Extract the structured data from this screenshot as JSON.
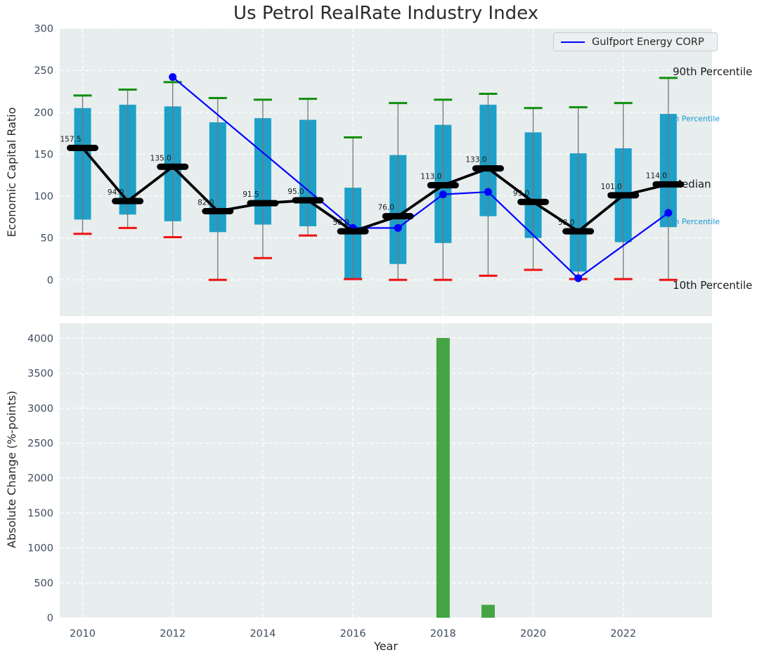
{
  "title": "Us Petrol RealRate Industry Index",
  "colors": {
    "panel_bg": "#e8edee",
    "grid": "#ffffff",
    "box_fill": "#1ea0c8",
    "whisker": "#777777",
    "p90_cap": "#0f8f0f",
    "p10_cap": "#ee1111",
    "median": "#000000",
    "gulfport_line": "#0000ff",
    "bar_fill": "#45a445",
    "tick_label": "#3e4c5e",
    "annotation_cyan": "#1699cd",
    "text_dark": "#1a1a1a"
  },
  "chart_data": [
    {
      "type": "boxplot",
      "title": "Us Petrol RealRate Industry Index",
      "ylabel": "Economic Capital Ratio",
      "ylim": [
        -43,
        300
      ],
      "yticks": [
        0,
        50,
        100,
        150,
        200,
        250,
        300
      ],
      "grid": true,
      "categories": [
        2010,
        2011,
        2012,
        2013,
        2014,
        2015,
        2016,
        2017,
        2018,
        2019,
        2020,
        2021,
        2022,
        2023
      ],
      "boxes": {
        "p90": [
          220,
          227,
          236,
          217,
          215,
          216,
          170,
          211,
          215,
          222,
          205,
          206,
          211,
          241
        ],
        "q3": [
          205,
          209,
          207,
          188,
          193,
          191,
          110,
          149,
          185,
          209,
          176,
          151,
          157,
          198
        ],
        "median": [
          157.5,
          94,
          135,
          82,
          91.5,
          95,
          58,
          76,
          113,
          133,
          93,
          58,
          101,
          114
        ],
        "q1": [
          72,
          78,
          70,
          57,
          66,
          64,
          1,
          19,
          44,
          76,
          50,
          10,
          45,
          63
        ],
        "p10": [
          55,
          62,
          51,
          0,
          26,
          53,
          1,
          0,
          0,
          5,
          12,
          1,
          1,
          0
        ]
      },
      "legend": {
        "label": "Gulfport Energy CORP",
        "position": "upper right"
      },
      "series": [
        {
          "name": "Gulfport Energy CORP",
          "type": "line",
          "color": "#0000ff",
          "points": [
            [
              2012,
              242
            ],
            [
              2016,
              62
            ],
            [
              2017,
              62
            ],
            [
              2018,
              102
            ],
            [
              2019,
              105
            ],
            [
              2021,
              2
            ],
            [
              2023,
              80
            ]
          ]
        }
      ],
      "annotations": [
        {
          "label": "90th Percentile",
          "value": 248,
          "color": "#1a1a1a",
          "size": 15,
          "x": 957
        },
        {
          "label": "75th Percentile",
          "value": 192,
          "color": "#1699cd",
          "size": 11,
          "x": 941
        },
        {
          "label": "Median",
          "value": 114,
          "color": "#1a1a1a",
          "size": 15,
          "x": 957
        },
        {
          "label": "25th Percentile",
          "value": 69,
          "color": "#1699cd",
          "size": 11,
          "x": 941
        },
        {
          "label": "10th Percentile",
          "value": -7,
          "color": "#1a1a1a",
          "size": 15,
          "x": 957
        }
      ]
    },
    {
      "type": "bar",
      "ylabel": "Absolute Change (%-points)",
      "xlabel": "Year",
      "ylim": [
        0,
        4215
      ],
      "yticks": [
        0,
        500,
        1000,
        1500,
        2000,
        2500,
        3000,
        3500,
        4000
      ],
      "xticks": [
        2010,
        2012,
        2014,
        2016,
        2018,
        2020,
        2022
      ],
      "grid": true,
      "bars": [
        {
          "x": 2018,
          "value": 4005
        },
        {
          "x": 2019,
          "value": 185
        }
      ]
    }
  ]
}
